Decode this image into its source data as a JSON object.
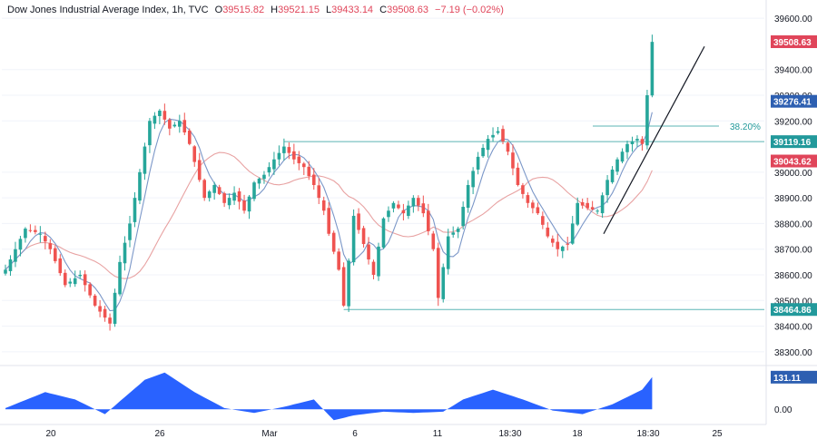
{
  "header": {
    "title": "Dow Jones Industrial Average Index, 1h, TVC",
    "open_label": "O",
    "open": "39515.82",
    "high_label": "H",
    "high": "39521.15",
    "low_label": "L",
    "low": "39433.14",
    "close_label": "C",
    "close": "39508.63",
    "change": "−7.19 (−0.02%)"
  },
  "colors": {
    "up": "#26a69a",
    "down": "#ef5350",
    "ma_fast": "#7b97c8",
    "ma_slow": "#e8a2a2",
    "level_line": "#5bb5b5",
    "oscillator": "#2962ff",
    "trendline": "#131722",
    "label_red": "#e0455a",
    "label_blue": "#2d5fb1",
    "label_teal": "#22999b"
  },
  "chart_data": {
    "type": "candlestick",
    "price_axis": {
      "ticks": [
        "39600.00",
        "39400.00",
        "39300.00",
        "39200.00",
        "39000.00",
        "38900.00",
        "38800.00",
        "38700.00",
        "38600.00",
        "38500.00",
        "38400.00",
        "38300.00"
      ],
      "tick_values": [
        39600,
        39400,
        39300,
        39200,
        39000,
        38900,
        38800,
        38700,
        38600,
        38500,
        38400,
        38300
      ],
      "range": [
        38250,
        39650
      ]
    },
    "time_axis": {
      "ticks": [
        "20",
        "26",
        "Mar",
        "6",
        "11",
        "18:30",
        "18",
        "18:30",
        "25"
      ]
    },
    "series": [
      {
        "pivots": [
          [
            0,
            38620
          ],
          [
            2,
            38700
          ],
          [
            4,
            38780
          ],
          [
            7,
            38760
          ],
          [
            9,
            38700
          ],
          [
            12,
            38560
          ],
          [
            15,
            38600
          ],
          [
            18,
            38480
          ],
          [
            21,
            38410
          ],
          [
            23,
            38650
          ],
          [
            25,
            38800
          ],
          [
            27,
            39000
          ],
          [
            29,
            39200
          ],
          [
            31,
            39240
          ],
          [
            33,
            39170
          ],
          [
            35,
            39200
          ],
          [
            37,
            39110
          ],
          [
            40,
            38900
          ],
          [
            42,
            38950
          ],
          [
            44,
            38880
          ],
          [
            46,
            38920
          ],
          [
            48,
            38850
          ],
          [
            50,
            38960
          ],
          [
            52,
            38990
          ],
          [
            54,
            39050
          ],
          [
            56,
            39100
          ],
          [
            58,
            39050
          ],
          [
            60,
            39020
          ],
          [
            62,
            38950
          ],
          [
            64,
            38850
          ],
          [
            65,
            38760
          ],
          [
            67,
            38620
          ],
          [
            68,
            38480
          ],
          [
            70,
            38830
          ],
          [
            72,
            38720
          ],
          [
            74,
            38600
          ],
          [
            76,
            38820
          ],
          [
            78,
            38880
          ],
          [
            80,
            38840
          ],
          [
            82,
            38900
          ],
          [
            84,
            38840
          ],
          [
            86,
            38700
          ],
          [
            87,
            38510
          ],
          [
            89,
            38750
          ],
          [
            91,
            38780
          ],
          [
            93,
            38950
          ],
          [
            95,
            39060
          ],
          [
            97,
            39130
          ],
          [
            99,
            39160
          ],
          [
            101,
            39080
          ],
          [
            103,
            38950
          ],
          [
            105,
            38880
          ],
          [
            107,
            38840
          ],
          [
            109,
            38750
          ],
          [
            111,
            38700
          ],
          [
            113,
            38720
          ],
          [
            115,
            38880
          ],
          [
            117,
            38860
          ],
          [
            119,
            38850
          ],
          [
            121,
            38970
          ],
          [
            123,
            39050
          ],
          [
            125,
            39110
          ],
          [
            127,
            39130
          ],
          [
            128,
            39110
          ],
          [
            129,
            39300
          ],
          [
            130,
            39508
          ]
        ]
      }
    ],
    "indicators": [
      {
        "name": "ma_fast",
        "label": "39276.41",
        "value": 39276.41
      },
      {
        "name": "ma_slow",
        "label": "39043.62",
        "value": 39043.62
      }
    ],
    "levels": [
      {
        "name": "resistance",
        "label": "39119.16",
        "value": 39119.16
      },
      {
        "name": "support",
        "label": "38464.86",
        "value": 38464.86
      },
      {
        "name": "fibonacci",
        "label": "38.20%",
        "value": 39180
      }
    ],
    "last_price": {
      "label": "39508.63",
      "value": 39508.63
    },
    "trendline": {
      "from": [
        38760,
        "Mar 18"
      ],
      "to": [
        39490,
        "Mar 21"
      ]
    },
    "oscillator": {
      "ticks": [
        "0.00"
      ],
      "tick_values": [
        0
      ],
      "range": [
        -40,
        175
      ],
      "last_label": "131.11",
      "last_value": 131.11,
      "pivots": [
        [
          0,
          5
        ],
        [
          8,
          70
        ],
        [
          14,
          40
        ],
        [
          20,
          -20
        ],
        [
          28,
          120
        ],
        [
          32,
          150
        ],
        [
          38,
          70
        ],
        [
          44,
          5
        ],
        [
          50,
          -15
        ],
        [
          56,
          10
        ],
        [
          62,
          40
        ],
        [
          66,
          -45
        ],
        [
          70,
          -25
        ],
        [
          76,
          -10
        ],
        [
          82,
          -15
        ],
        [
          88,
          -10
        ],
        [
          92,
          40
        ],
        [
          98,
          80
        ],
        [
          104,
          40
        ],
        [
          110,
          -5
        ],
        [
          116,
          -20
        ],
        [
          122,
          20
        ],
        [
          128,
          80
        ],
        [
          130,
          131.11
        ]
      ]
    }
  }
}
